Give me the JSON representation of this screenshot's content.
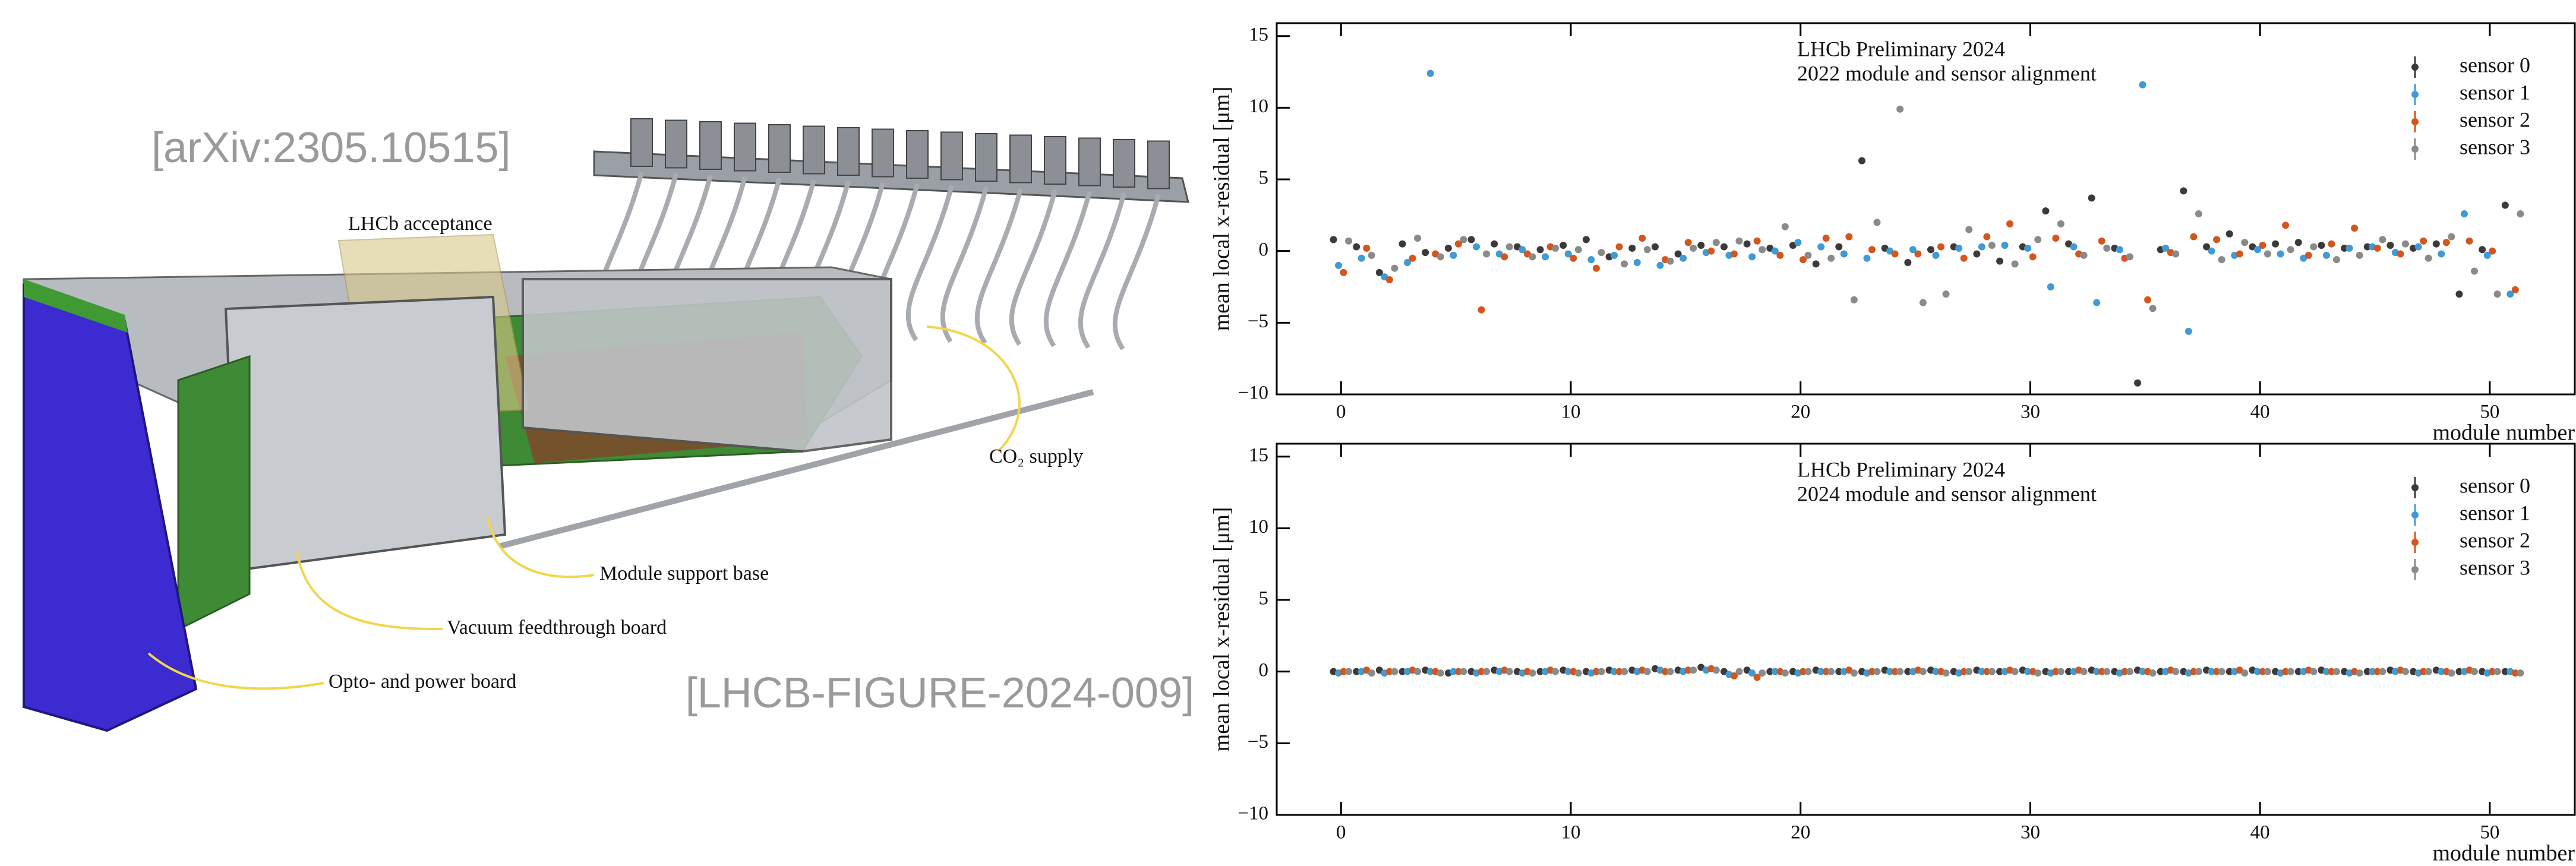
{
  "illustration": {
    "citation_left": "[arXiv:2305.10515]",
    "citation_right": "[LHCB-FIGURE-2024-009]",
    "labels": [
      "LHCb acceptance",
      "CO₂ supply",
      "Module support base",
      "Vacuum feedthrough board",
      "Opto- and power board"
    ]
  },
  "chart_data": [
    {
      "type": "scatter",
      "title": "LHCb Preliminary 2024",
      "subtitle": "2022 module and sensor alignment",
      "xlabel": "module number",
      "ylabel": "mean local x-residual [μm]",
      "xlim": [
        -2.8,
        53.7
      ],
      "xticks": [
        0,
        10,
        20,
        30,
        40,
        50
      ],
      "ylim": [
        -10,
        15.9
      ],
      "yticks": [
        {
          "value": -10,
          "label": "−10"
        },
        {
          "value": -5,
          "label": "−5"
        },
        0,
        5,
        10,
        15
      ],
      "legend": "upper right",
      "x": [
        0,
        1,
        2,
        3,
        4,
        5,
        6,
        7,
        8,
        9,
        10,
        11,
        12,
        13,
        14,
        15,
        16,
        17,
        18,
        19,
        20,
        21,
        22,
        23,
        24,
        25,
        26,
        27,
        28,
        29,
        30,
        31,
        32,
        33,
        34,
        35,
        36,
        37,
        38,
        39,
        40,
        41,
        42,
        43,
        44,
        45,
        46,
        47,
        48,
        49,
        50,
        51
      ],
      "series": [
        {
          "name": "sensor 0",
          "color": "#3a3a3a",
          "values": [
            0.8,
            0.3,
            -1.5,
            0.5,
            -0.1,
            0.2,
            0.8,
            0.5,
            0.3,
            0.1,
            0.4,
            0.8,
            -0.4,
            0.2,
            0.3,
            -0.2,
            0.4,
            0.3,
            0.5,
            0.2,
            0.4,
            -0.9,
            0.3,
            6.3,
            0.2,
            -0.8,
            0.1,
            0.3,
            -0.2,
            -0.7,
            0.3,
            2.8,
            0.5,
            3.7,
            0.2,
            -9.2,
            0.1,
            4.2,
            0.3,
            1.2,
            0.3,
            0.5,
            0.6,
            0.4,
            0.2,
            0.3,
            0.4,
            0.2,
            0.5,
            -3.0,
            0.1,
            3.2
          ]
        },
        {
          "name": "sensor 1",
          "color": "#3f9ad6",
          "values": [
            -1.0,
            -0.5,
            -1.8,
            -0.8,
            12.4,
            -0.3,
            0.3,
            -0.2,
            0.1,
            -0.4,
            -0.2,
            -0.6,
            -0.3,
            -0.8,
            -1.0,
            -0.5,
            -0.1,
            -0.3,
            -0.4,
            0.0,
            0.6,
            0.3,
            -0.2,
            -0.5,
            0.0,
            0.1,
            -0.3,
            0.2,
            0.3,
            0.4,
            0.2,
            -2.5,
            0.3,
            -3.6,
            0.1,
            11.6,
            0.2,
            -5.6,
            0.0,
            -0.3,
            0.1,
            -0.2,
            -0.5,
            -0.3,
            0.2,
            0.3,
            -0.1,
            0.3,
            -0.2,
            2.6,
            -0.3,
            -3.0
          ]
        },
        {
          "name": "sensor 2",
          "color": "#d4561c",
          "values": [
            -1.5,
            0.2,
            -2.0,
            -0.5,
            -0.2,
            0.5,
            -4.1,
            -0.4,
            -0.2,
            0.3,
            -0.5,
            -1.2,
            0.3,
            0.9,
            -0.6,
            0.6,
            0.0,
            -0.2,
            0.7,
            -0.3,
            -0.6,
            0.9,
            1.0,
            0.1,
            -0.2,
            -0.2,
            0.3,
            -0.5,
            1.0,
            1.9,
            -0.4,
            0.9,
            -0.2,
            0.7,
            -0.5,
            -3.4,
            -0.1,
            1.0,
            0.8,
            -0.2,
            0.4,
            1.8,
            -0.3,
            0.5,
            1.6,
            0.2,
            -0.2,
            0.7,
            0.6,
            0.7,
            0.0,
            -2.7
          ]
        },
        {
          "name": "sensor 3",
          "color": "#8a8a8a",
          "values": [
            0.7,
            -0.3,
            -1.2,
            0.9,
            -0.4,
            0.8,
            -0.2,
            0.3,
            -0.4,
            0.2,
            0.1,
            -0.1,
            -0.9,
            0.1,
            -0.7,
            0.2,
            0.6,
            0.7,
            0.1,
            1.7,
            -0.3,
            -0.5,
            -3.4,
            2.0,
            9.9,
            -3.6,
            -3.0,
            1.5,
            0.4,
            -0.9,
            0.8,
            1.9,
            -0.3,
            0.2,
            -0.4,
            -4.0,
            -0.2,
            2.6,
            -0.6,
            0.6,
            -0.2,
            0.1,
            0.3,
            -0.6,
            -0.3,
            0.8,
            0.5,
            -0.5,
            1.0,
            -1.4,
            -3.0,
            2.6
          ]
        }
      ]
    },
    {
      "type": "scatter",
      "title": "LHCb Preliminary 2024",
      "subtitle": "2024 module and sensor alignment",
      "xlabel": "module number",
      "ylabel": "mean local x-residual [μm]",
      "xlim": [
        -2.8,
        53.7
      ],
      "xticks": [
        0,
        10,
        20,
        30,
        40,
        50
      ],
      "ylim": [
        -10,
        15.9
      ],
      "yticks": [
        {
          "value": -10,
          "label": "−10"
        },
        {
          "value": -5,
          "label": "−5"
        },
        0,
        5,
        10,
        15
      ],
      "legend": "upper right",
      "x": [
        0,
        1,
        2,
        3,
        4,
        5,
        6,
        7,
        8,
        9,
        10,
        11,
        12,
        13,
        14,
        15,
        16,
        17,
        18,
        19,
        20,
        21,
        22,
        23,
        24,
        25,
        26,
        27,
        28,
        29,
        30,
        31,
        32,
        33,
        34,
        35,
        36,
        37,
        38,
        39,
        40,
        41,
        42,
        43,
        44,
        45,
        46,
        47,
        48,
        49,
        50,
        51
      ],
      "series": [
        {
          "name": "sensor 0",
          "color": "#3a3a3a",
          "values": [
            0.0,
            0.0,
            0.1,
            0.0,
            0.1,
            -0.1,
            0.0,
            0.1,
            0.0,
            0.0,
            0.1,
            0.0,
            0.1,
            0.1,
            0.2,
            0.1,
            0.3,
            0.0,
            0.1,
            0.0,
            0.0,
            0.1,
            0.0,
            0.0,
            0.1,
            0.0,
            0.1,
            0.0,
            0.1,
            0.0,
            0.1,
            0.0,
            0.0,
            0.1,
            0.0,
            0.1,
            0.0,
            0.0,
            0.1,
            0.0,
            0.1,
            0.0,
            0.0,
            0.1,
            0.0,
            0.0,
            0.1,
            0.0,
            0.1,
            0.0,
            0.0,
            0.0
          ]
        },
        {
          "name": "sensor 1",
          "color": "#3f9ad6",
          "values": [
            -0.1,
            0.0,
            -0.1,
            0.0,
            0.0,
            0.0,
            -0.1,
            0.0,
            -0.1,
            0.0,
            0.0,
            -0.1,
            0.0,
            0.0,
            0.1,
            0.0,
            0.1,
            -0.2,
            -0.1,
            0.0,
            -0.1,
            0.0,
            0.0,
            -0.1,
            0.0,
            0.0,
            0.0,
            -0.1,
            0.0,
            0.0,
            0.0,
            -0.1,
            0.0,
            0.0,
            -0.1,
            0.0,
            0.0,
            -0.1,
            0.0,
            0.0,
            0.0,
            -0.1,
            0.0,
            0.0,
            -0.1,
            0.0,
            0.0,
            -0.1,
            0.0,
            0.0,
            -0.1,
            0.0
          ]
        },
        {
          "name": "sensor 2",
          "color": "#d4561c",
          "values": [
            0.0,
            0.1,
            0.0,
            0.1,
            0.0,
            0.0,
            0.0,
            0.1,
            0.0,
            0.1,
            0.0,
            0.0,
            0.0,
            0.1,
            0.0,
            0.1,
            0.2,
            -0.3,
            -0.4,
            0.0,
            0.0,
            0.0,
            0.1,
            0.0,
            0.0,
            0.1,
            0.0,
            0.0,
            0.0,
            0.1,
            0.0,
            0.0,
            0.1,
            0.0,
            0.0,
            0.0,
            0.1,
            0.0,
            0.0,
            0.1,
            0.0,
            0.0,
            0.1,
            0.0,
            0.0,
            0.0,
            0.1,
            0.0,
            0.0,
            0.1,
            0.0,
            -0.1
          ]
        },
        {
          "name": "sensor 3",
          "color": "#8a8a8a",
          "values": [
            0.0,
            -0.1,
            0.0,
            0.0,
            -0.1,
            0.0,
            0.0,
            0.0,
            -0.1,
            0.0,
            -0.1,
            0.0,
            0.0,
            0.0,
            0.0,
            0.1,
            0.1,
            0.0,
            -0.1,
            -0.1,
            0.0,
            0.0,
            -0.1,
            0.0,
            0.0,
            0.0,
            -0.1,
            0.0,
            0.0,
            0.0,
            -0.1,
            0.0,
            0.0,
            0.0,
            0.0,
            -0.1,
            0.0,
            0.0,
            0.0,
            -0.1,
            0.0,
            0.0,
            0.0,
            0.0,
            -0.1,
            0.0,
            0.0,
            0.0,
            -0.1,
            0.0,
            0.0,
            -0.1
          ]
        }
      ]
    }
  ]
}
